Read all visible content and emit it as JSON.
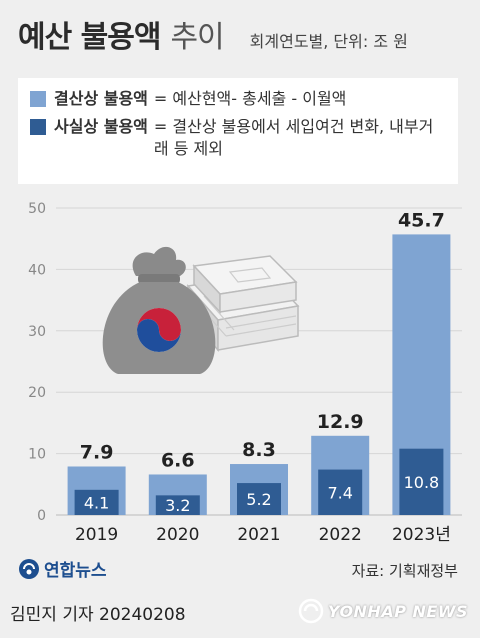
{
  "title": {
    "main": "예산 불용액",
    "sub": "추이",
    "unit": "회계연도별, 단위: 조 원"
  },
  "legend": [
    {
      "name": "결산상 불용액",
      "definition": "= 예산현액- 총세출 - 이월액",
      "color": "#7fa4d2"
    },
    {
      "name": "사실상 불용액",
      "definition": "= 결산상 불용에서 세입여건 변화, 내부거래 등 제외",
      "color": "#2f5c93"
    }
  ],
  "chart_data": {
    "type": "bar",
    "categories": [
      "2019",
      "2020",
      "2021",
      "2022",
      "2023년"
    ],
    "series": [
      {
        "name": "결산상 불용액",
        "values": [
          7.9,
          6.6,
          8.3,
          12.9,
          45.7
        ],
        "color": "#7fa4d2"
      },
      {
        "name": "사실상 불용액",
        "values": [
          4.1,
          3.2,
          5.2,
          7.4,
          10.8
        ],
        "color": "#2f5c93"
      }
    ],
    "ylim": [
      0,
      50
    ],
    "yticks": [
      0,
      10,
      20,
      30,
      40,
      50
    ],
    "grid": true
  },
  "logo": "연합뉴스",
  "source": "자료: 기획재정부",
  "byline": "김민지 기자  20240208",
  "watermark": "YONHAP NEWS"
}
